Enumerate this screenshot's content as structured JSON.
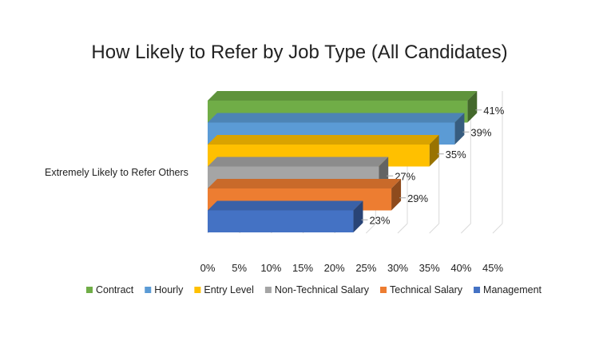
{
  "chart_data": {
    "type": "bar",
    "orientation": "horizontal",
    "style": "3d",
    "title": "How Likely to Refer by Job Type (All Candidates)",
    "categories": [
      "Extremely Likely to Refer Others"
    ],
    "series": [
      {
        "name": "Contract",
        "values": [
          41
        ],
        "label": "41%",
        "color": "#70AD47"
      },
      {
        "name": "Hourly",
        "values": [
          39
        ],
        "label": "39%",
        "color": "#5B9BD5"
      },
      {
        "name": "Entry Level",
        "values": [
          35
        ],
        "label": "35%",
        "color": "#FFC000"
      },
      {
        "name": "Non-Technical Salary",
        "values": [
          27
        ],
        "label": "27%",
        "color": "#A5A5A5"
      },
      {
        "name": "Technical Salary",
        "values": [
          29
        ],
        "label": "29%",
        "color": "#ED7D31"
      },
      {
        "name": "Management",
        "values": [
          23
        ],
        "label": "23%",
        "color": "#4472C4"
      }
    ],
    "x_ticks": [
      "0%",
      "5%",
      "10%",
      "15%",
      "20%",
      "25%",
      "30%",
      "35%",
      "40%",
      "45%"
    ],
    "xlim": [
      0,
      45
    ],
    "grid": true,
    "legend_position": "bottom"
  }
}
